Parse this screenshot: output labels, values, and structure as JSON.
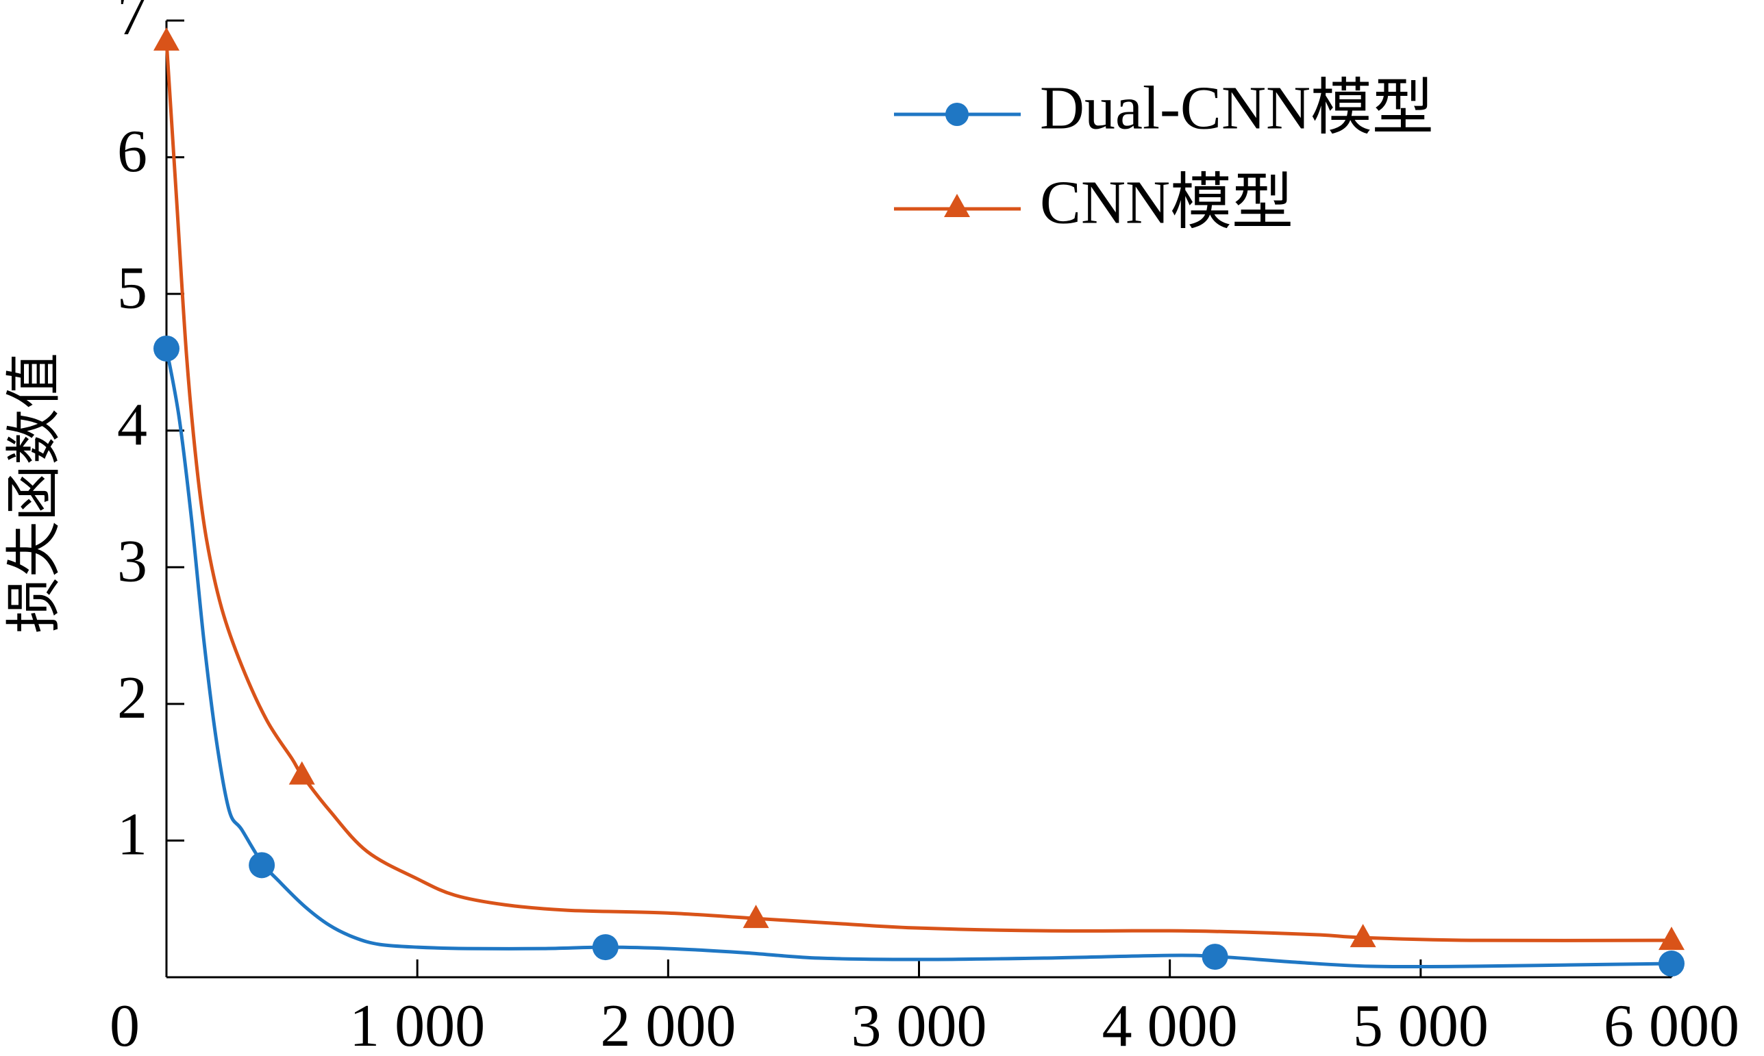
{
  "chart_data": {
    "type": "line",
    "title": "",
    "xlabel": "",
    "ylabel": "损失函数值",
    "xlim": [
      0,
      6000
    ],
    "ylim": [
      0,
      7
    ],
    "x_ticks": [
      {
        "value": 0,
        "label": "0"
      },
      {
        "value": 1000,
        "label": "1 000"
      },
      {
        "value": 2000,
        "label": "2 000"
      },
      {
        "value": 3000,
        "label": "3 000"
      },
      {
        "value": 4000,
        "label": "4 000"
      },
      {
        "value": 5000,
        "label": "5 000"
      },
      {
        "value": 6000,
        "label": "6 000"
      }
    ],
    "y_ticks": [
      {
        "value": 1,
        "label": "1"
      },
      {
        "value": 2,
        "label": "2"
      },
      {
        "value": 3,
        "label": "3"
      },
      {
        "value": 4,
        "label": "4"
      },
      {
        "value": 5,
        "label": "5"
      },
      {
        "value": 6,
        "label": "6"
      },
      {
        "value": 7,
        "label": "7"
      }
    ],
    "grid": false,
    "legend_position": "top-right",
    "series": [
      {
        "name": "Dual-CNN模型",
        "color": "#1f77c4",
        "marker": "circle",
        "curve": [
          [
            0,
            4.6
          ],
          [
            50,
            4.1
          ],
          [
            100,
            3.35
          ],
          [
            150,
            2.45
          ],
          [
            200,
            1.72
          ],
          [
            250,
            1.22
          ],
          [
            300,
            1.08
          ],
          [
            380,
            0.84
          ],
          [
            450,
            0.7
          ],
          [
            550,
            0.52
          ],
          [
            650,
            0.38
          ],
          [
            750,
            0.29
          ],
          [
            850,
            0.24
          ],
          [
            1000,
            0.22
          ],
          [
            1200,
            0.21
          ],
          [
            1500,
            0.21
          ],
          [
            1750,
            0.22
          ],
          [
            2000,
            0.21
          ],
          [
            2300,
            0.18
          ],
          [
            2600,
            0.14
          ],
          [
            3000,
            0.13
          ],
          [
            3500,
            0.14
          ],
          [
            4000,
            0.16
          ],
          [
            4200,
            0.15
          ],
          [
            4500,
            0.11
          ],
          [
            4800,
            0.08
          ],
          [
            5200,
            0.08
          ],
          [
            5600,
            0.09
          ],
          [
            6000,
            0.1
          ]
        ],
        "markers": [
          [
            0,
            4.6
          ],
          [
            380,
            0.82
          ],
          [
            1750,
            0.22
          ],
          [
            4180,
            0.15
          ],
          [
            6000,
            0.1
          ]
        ]
      },
      {
        "name": "CNN模型",
        "color": "#d95319",
        "marker": "triangle",
        "curve": [
          [
            0,
            6.85
          ],
          [
            40,
            5.7
          ],
          [
            80,
            4.55
          ],
          [
            120,
            3.75
          ],
          [
            160,
            3.2
          ],
          [
            220,
            2.7
          ],
          [
            300,
            2.28
          ],
          [
            400,
            1.88
          ],
          [
            500,
            1.6
          ],
          [
            540,
            1.48
          ],
          [
            650,
            1.22
          ],
          [
            800,
            0.92
          ],
          [
            1000,
            0.72
          ],
          [
            1150,
            0.6
          ],
          [
            1350,
            0.53
          ],
          [
            1600,
            0.49
          ],
          [
            2000,
            0.47
          ],
          [
            2350,
            0.43
          ],
          [
            2700,
            0.39
          ],
          [
            3000,
            0.36
          ],
          [
            3500,
            0.34
          ],
          [
            4000,
            0.34
          ],
          [
            4300,
            0.33
          ],
          [
            4600,
            0.31
          ],
          [
            4770,
            0.29
          ],
          [
            5200,
            0.27
          ],
          [
            6000,
            0.27
          ]
        ],
        "markers": [
          [
            0,
            6.85
          ],
          [
            540,
            1.48
          ],
          [
            2350,
            0.43
          ],
          [
            4770,
            0.29
          ],
          [
            6000,
            0.27
          ]
        ]
      }
    ]
  }
}
